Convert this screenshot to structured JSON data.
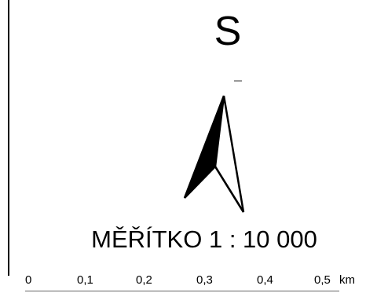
{
  "map": {
    "north_label": "S",
    "scale_title": "MĚŘÍTKO 1 : 10 000",
    "scale_bar": {
      "ticks": [
        "0",
        "0,1",
        "0,2",
        "0,3",
        "0,4",
        "0,5"
      ],
      "unit": "km"
    }
  },
  "colors": {
    "ink": "#000000",
    "background": "#ffffff"
  }
}
